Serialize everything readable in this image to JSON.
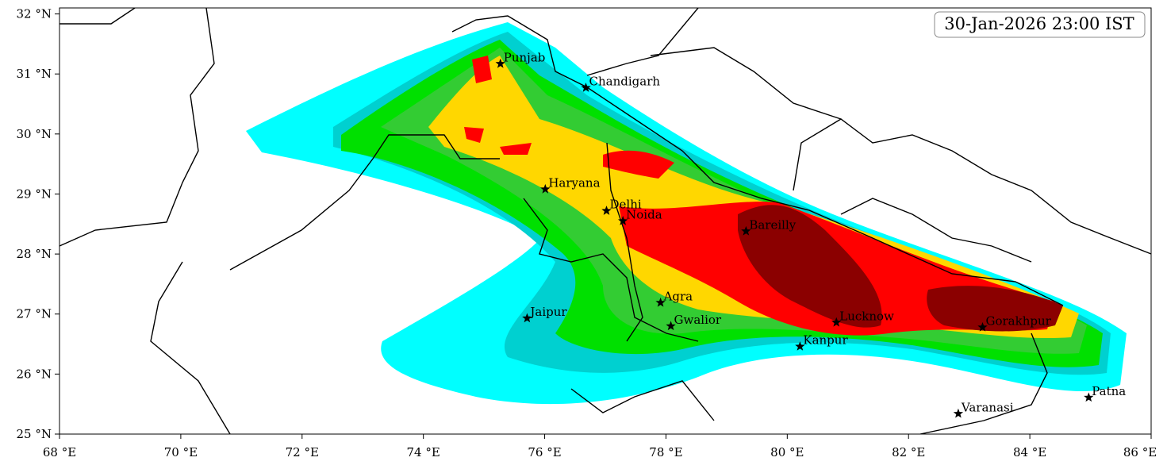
{
  "map": {
    "timestamp": "30-Jan-2026 23:00 IST",
    "xlim": [
      68,
      86.0
    ],
    "ylim": [
      25,
      32.1
    ],
    "xticks": [
      {
        "value": 68,
        "label": "68 °E"
      },
      {
        "value": 70,
        "label": "70 °E"
      },
      {
        "value": 72,
        "label": "72 °E"
      },
      {
        "value": 74,
        "label": "74 °E"
      },
      {
        "value": 76,
        "label": "76 °E"
      },
      {
        "value": 78,
        "label": "78 °E"
      },
      {
        "value": 80,
        "label": "80 °E"
      },
      {
        "value": 82,
        "label": "82 °E"
      },
      {
        "value": 84,
        "label": "84 °E"
      },
      {
        "value": 86,
        "label": "86 °E"
      }
    ],
    "yticks": [
      {
        "value": 25,
        "label": "25 °N"
      },
      {
        "value": 26,
        "label": "26 °N"
      },
      {
        "value": 27,
        "label": "27 °N"
      },
      {
        "value": 28,
        "label": "28 °N"
      },
      {
        "value": 29,
        "label": "29 °N"
      },
      {
        "value": 30,
        "label": "30 °N"
      },
      {
        "value": 31,
        "label": "31 °N"
      },
      {
        "value": 32,
        "label": "32 °N"
      }
    ],
    "cities": [
      {
        "name": "Punjab",
        "lon": 75.27,
        "lat": 31.17
      },
      {
        "name": "Chandigarh",
        "lon": 76.68,
        "lat": 30.77
      },
      {
        "name": "Haryana",
        "lon": 76.01,
        "lat": 29.08
      },
      {
        "name": "Delhi",
        "lon": 77.02,
        "lat": 28.72
      },
      {
        "name": "Noida",
        "lon": 77.29,
        "lat": 28.55
      },
      {
        "name": "Bareilly",
        "lon": 79.32,
        "lat": 28.38
      },
      {
        "name": "Agra",
        "lon": 77.91,
        "lat": 27.19
      },
      {
        "name": "Jaipur",
        "lon": 75.71,
        "lat": 26.93
      },
      {
        "name": "Gwalior",
        "lon": 78.08,
        "lat": 26.8
      },
      {
        "name": "Lucknow",
        "lon": 80.81,
        "lat": 26.86
      },
      {
        "name": "Kanpur",
        "lon": 80.21,
        "lat": 26.46
      },
      {
        "name": "Gorakhpur",
        "lon": 83.22,
        "lat": 26.78
      },
      {
        "name": "Varanasi",
        "lon": 82.82,
        "lat": 25.34
      },
      {
        "name": "Patna",
        "lon": 84.97,
        "lat": 25.61
      }
    ]
  }
}
